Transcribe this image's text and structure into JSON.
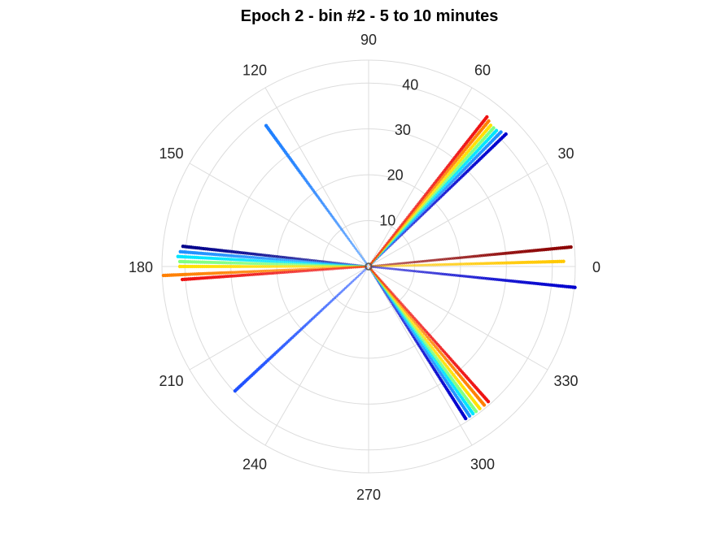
{
  "chart_data": {
    "type": "scatter",
    "subtype": "polar",
    "title": "Epoch 2 - bin #2 - 5 to 10 minutes",
    "theta_ticks": [
      0,
      30,
      60,
      90,
      120,
      150,
      180,
      210,
      240,
      270,
      300,
      330
    ],
    "r_ticks": [
      10,
      20,
      30,
      40
    ],
    "rlim": [
      0,
      45
    ],
    "theta_zero": "right",
    "theta_direction": "counterclockwise",
    "grid": true,
    "colormap": "jet",
    "rays": [
      {
        "theta": 44.0,
        "r_max": 42.0,
        "color": "#0000cd"
      },
      {
        "theta": 45.5,
        "r_max": 41.5,
        "color": "#1e90ff"
      },
      {
        "theta": 46.8,
        "r_max": 41.0,
        "color": "#00e5ff"
      },
      {
        "theta": 48.0,
        "r_max": 41.0,
        "color": "#7fff7f"
      },
      {
        "theta": 49.2,
        "r_max": 41.0,
        "color": "#ffe000"
      },
      {
        "theta": 50.5,
        "r_max": 41.5,
        "color": "#ff7f00"
      },
      {
        "theta": 51.7,
        "r_max": 42.0,
        "color": "#ee1111"
      },
      {
        "theta": 5.5,
        "r_max": 44.5,
        "color": "#8b0000"
      },
      {
        "theta": 1.5,
        "r_max": 42.5,
        "color": "#ffc800"
      },
      {
        "theta": -5.8,
        "r_max": 45.5,
        "color": "#0000cd"
      },
      {
        "theta": 126.0,
        "r_max": 38.0,
        "color": "#1e7fff"
      },
      {
        "theta": 173.8,
        "r_max": 40.8,
        "color": "#00008b"
      },
      {
        "theta": 175.5,
        "r_max": 41.5,
        "color": "#1e90ff"
      },
      {
        "theta": 177.0,
        "r_max": 41.8,
        "color": "#00e5ff"
      },
      {
        "theta": 178.5,
        "r_max": 41.5,
        "color": "#7fff7f"
      },
      {
        "theta": 180.0,
        "r_max": 41.5,
        "color": "#ffe000"
      },
      {
        "theta": 182.5,
        "r_max": 45.0,
        "color": "#ff7f00"
      },
      {
        "theta": 184.0,
        "r_max": 41.0,
        "color": "#ee1111"
      },
      {
        "theta": 223.0,
        "r_max": 40.0,
        "color": "#1e50ff"
      },
      {
        "theta": 302.5,
        "r_max": 39.5,
        "color": "#0000cd"
      },
      {
        "theta": 304.0,
        "r_max": 39.5,
        "color": "#1e90ff"
      },
      {
        "theta": 305.3,
        "r_max": 39.5,
        "color": "#00e5ff"
      },
      {
        "theta": 306.5,
        "r_max": 39.5,
        "color": "#7fff7f"
      },
      {
        "theta": 308.0,
        "r_max": 39.5,
        "color": "#ffe000"
      },
      {
        "theta": 309.8,
        "r_max": 39.5,
        "color": "#ff7f00"
      },
      {
        "theta": 311.5,
        "r_max": 39.5,
        "color": "#ee1111"
      }
    ]
  }
}
